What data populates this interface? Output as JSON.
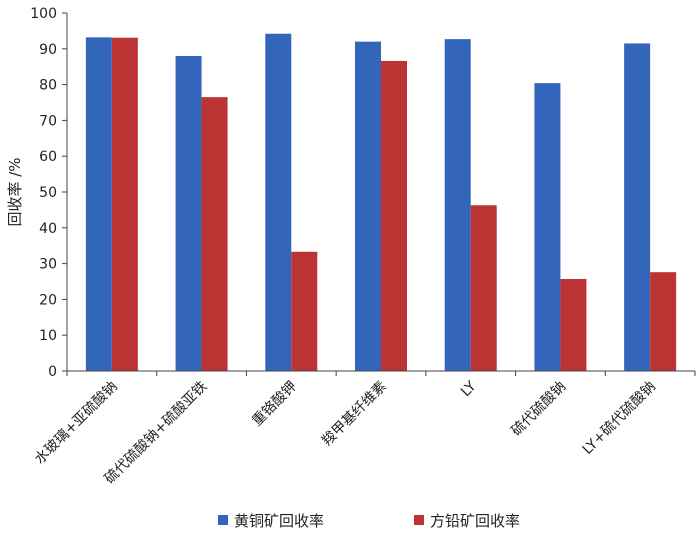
{
  "chart_data": {
    "type": "bar",
    "title": "",
    "xlabel": "",
    "ylabel": "回收率 /%",
    "ylim": [
      0,
      100
    ],
    "yticks": [
      0,
      10,
      20,
      30,
      40,
      50,
      60,
      70,
      80,
      90,
      100
    ],
    "grid": false,
    "legend_position": "bottom",
    "categories": [
      "水玻璃+亚硫酸钠",
      "硫代硫酸钠+硫酸亚铁",
      "重铬酸钾",
      "羧甲基纤维素",
      "LY",
      "硫代硫酸钠",
      "LY+硫代硫酸钠"
    ],
    "series": [
      {
        "name": "黄铜矿回收率",
        "color": "#3366bb",
        "values": [
          93.2,
          88.0,
          94.2,
          92.0,
          92.7,
          80.4,
          91.5
        ]
      },
      {
        "name": "方铅矿回收率",
        "color": "#bb3333",
        "values": [
          93.1,
          76.5,
          33.3,
          86.6,
          46.3,
          25.7,
          27.6
        ]
      }
    ]
  }
}
